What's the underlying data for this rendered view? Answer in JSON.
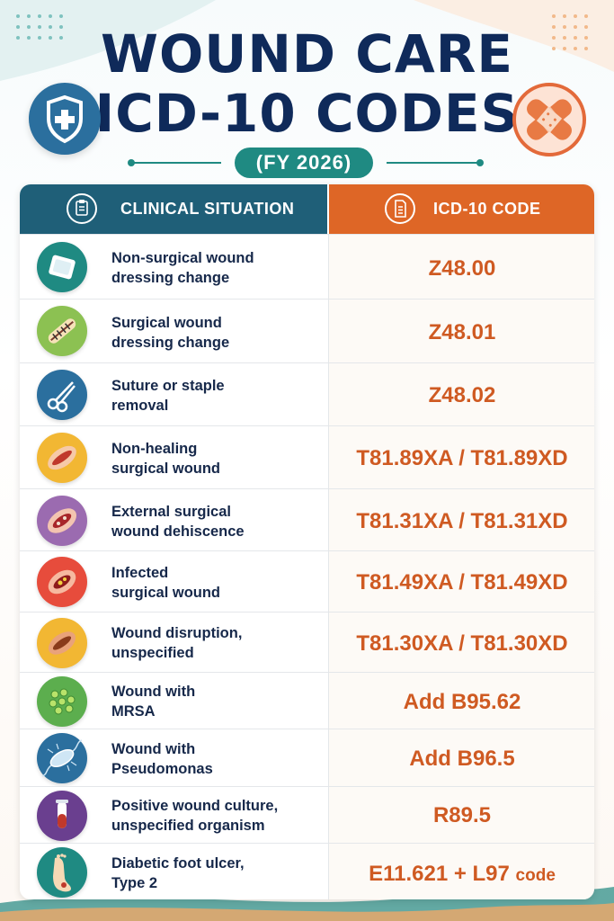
{
  "title": {
    "line1": "WOUND CARE",
    "line2": "ICD-10 CODES",
    "year": "(FY 2026)"
  },
  "colors": {
    "navy": "#0f2a5a",
    "teal": "#1f5f78",
    "orange": "#de6626",
    "code_text": "#cf5a22"
  },
  "table": {
    "header": {
      "left": "CLINICAL SITUATION",
      "right": "ICD-10 CODE",
      "left_icon": "clipboard-icon",
      "right_icon": "document-icon"
    },
    "rows": [
      {
        "line1": "Non-surgical wound",
        "line2": "dressing change",
        "code": "Z48.00",
        "icon": "gauze-pad-icon"
      },
      {
        "line1": "Surgical wound",
        "line2": "dressing change",
        "code": "Z48.01",
        "icon": "sutured-wound-icon"
      },
      {
        "line1": "Suture or staple",
        "line2": "removal",
        "code": "Z48.02",
        "icon": "scissors-icon"
      },
      {
        "line1": "Non-healing",
        "line2": "surgical wound",
        "code": "T81.89XA / T81.89XD",
        "icon": "open-wound-icon"
      },
      {
        "line1": "External surgical",
        "line2": "wound dehiscence",
        "code": "T81.31XA / T81.31XD",
        "icon": "dehiscence-icon"
      },
      {
        "line1": "Infected",
        "line2": "surgical wound",
        "code": "T81.49XA / T81.49XD",
        "icon": "infected-wound-icon"
      },
      {
        "line1": "Wound disruption,",
        "line2": "unspecified",
        "code": "T81.30XA / T81.30XD",
        "icon": "wound-disruption-icon"
      },
      {
        "line1": "Wound with",
        "line2": "MRSA",
        "code": "Add B95.62",
        "icon": "bacteria-cluster-icon"
      },
      {
        "line1": "Wound with",
        "line2": "Pseudomonas",
        "code": "Add B96.5",
        "icon": "bacterium-icon"
      },
      {
        "line1": "Positive wound culture,",
        "line2": "unspecified organism",
        "code": "R89.5",
        "icon": "test-tube-icon"
      },
      {
        "line1": "Diabetic foot ulcer,",
        "line2": "Type 2",
        "code_main": "E11.621 + L97",
        "code_suffix": "code",
        "icon": "foot-ulcer-icon"
      }
    ]
  },
  "badges": {
    "left_icon": "medical-shield-icon",
    "right_icon": "bandage-icon"
  }
}
